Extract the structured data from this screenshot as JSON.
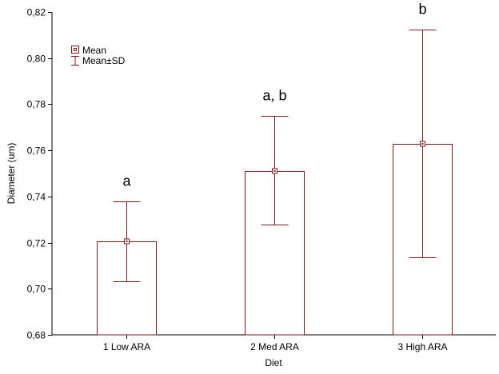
{
  "chart_data": {
    "type": "bar",
    "xlabel": "Diet",
    "ylabel": "Diameter (um)",
    "ylim": [
      0.68,
      0.82
    ],
    "yticks": [
      0.68,
      0.7,
      0.72,
      0.74,
      0.76,
      0.78,
      0.8,
      0.82
    ],
    "ytick_labels": [
      "0,68",
      "0,70",
      "0,72",
      "0,74",
      "0,76",
      "0,78",
      "0,80",
      "0,82"
    ],
    "categories": [
      "1 Low ARA",
      "2 Med ARA",
      "3 High ARA"
    ],
    "values": [
      0.7205,
      0.7512,
      0.7628
    ],
    "sd_lower": [
      0.7032,
      0.7277,
      0.7135
    ],
    "sd_upper": [
      0.7378,
      0.7748,
      0.8123
    ],
    "significance_labels": [
      "a",
      "a, b",
      "b"
    ],
    "legend": {
      "placement": "top-left",
      "entries": [
        "Mean",
        "Mean±SD"
      ]
    },
    "grid": false,
    "colors": {
      "series": "#7a1a1a",
      "axis": "#000000",
      "background": "#ffffff"
    }
  }
}
